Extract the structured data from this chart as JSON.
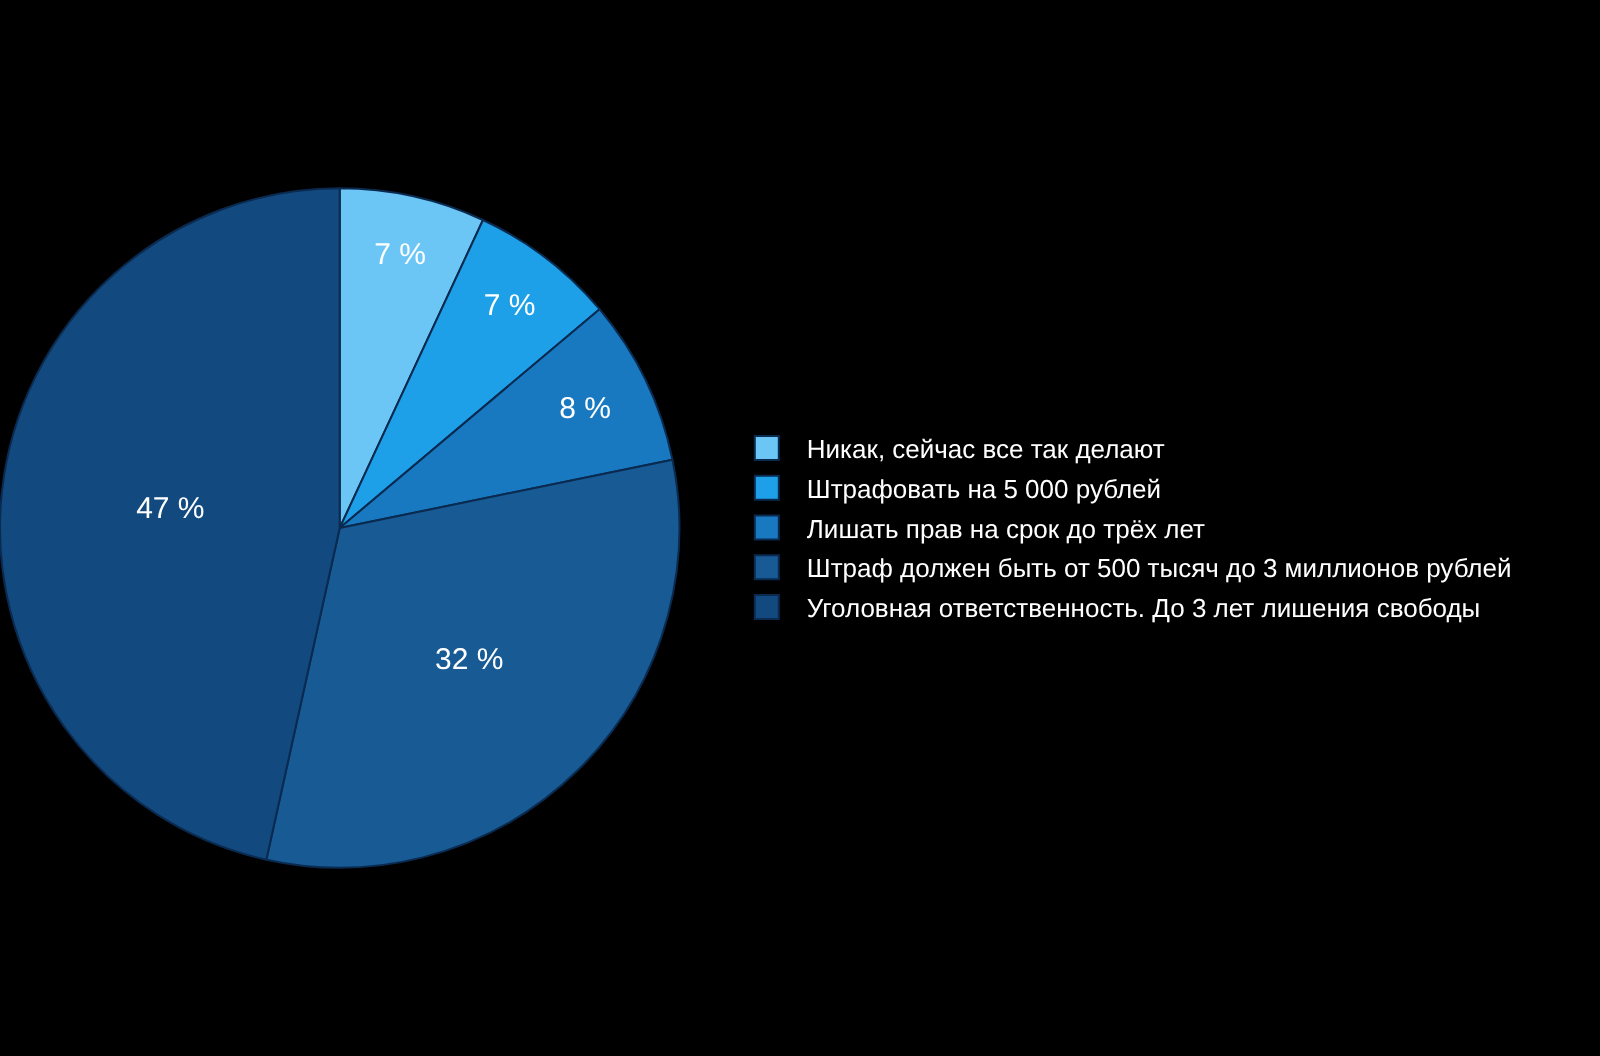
{
  "chart_data": {
    "type": "pie",
    "categories": [
      "Никак, сейчас все так делают",
      "Штрафовать на 5 000 рублей",
      "Лишать прав на срок до трёх лет",
      "Штраф должен быть от 500 тысяч до 3 миллионов рублей",
      "Уголовная ответственность. До 3 лет лишения свободы"
    ],
    "values": [
      7,
      7,
      8,
      32,
      47
    ],
    "value_labels": [
      "7 %",
      "7 %",
      "8 %",
      "32 %",
      "47 %"
    ],
    "colors": [
      "#6cc6f5",
      "#1ea0e8",
      "#1878c0",
      "#175a94",
      "#124a80"
    ],
    "legend": "right"
  }
}
